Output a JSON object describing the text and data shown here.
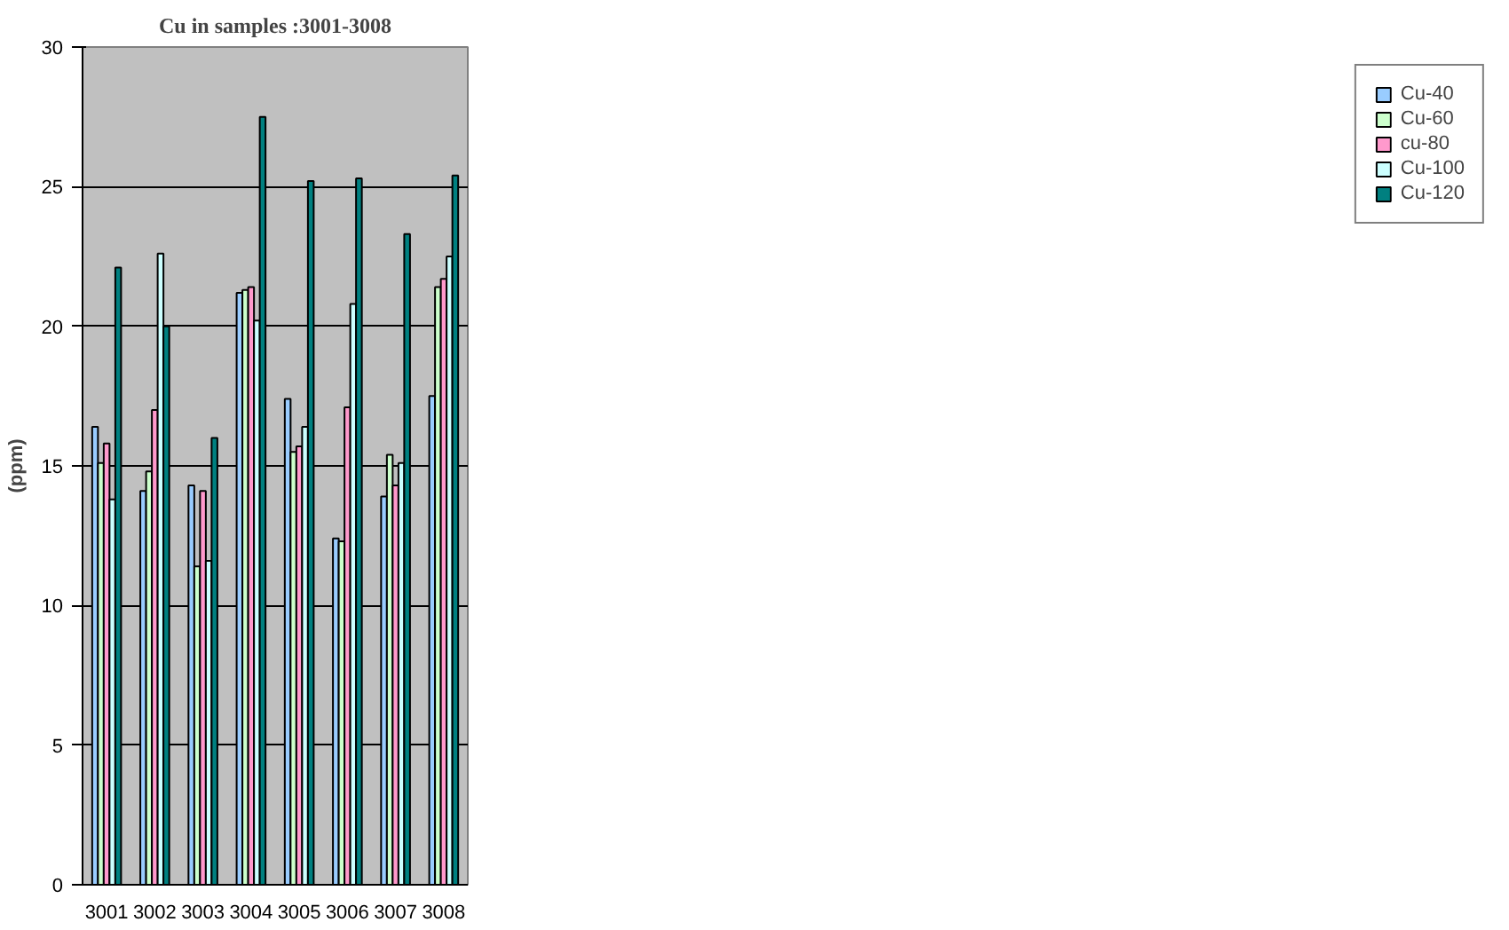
{
  "chart_data": {
    "type": "bar",
    "title": "Cu in samples :3001-3008",
    "ylabel": "(ppm)",
    "categories": [
      "3001",
      "3002",
      "3003",
      "3004",
      "3005",
      "3006",
      "3007",
      "3008"
    ],
    "series": [
      {
        "name": "Cu-40",
        "color": "#99ccff",
        "values": [
          16.4,
          14.1,
          14.3,
          21.2,
          17.4,
          12.4,
          13.9,
          17.5
        ]
      },
      {
        "name": "Cu-60",
        "color": "#ccffcc",
        "values": [
          15.1,
          14.8,
          11.4,
          21.3,
          15.5,
          12.3,
          15.4,
          21.4
        ]
      },
      {
        "name": "cu-80",
        "color": "#ff99cc",
        "values": [
          15.8,
          17.0,
          14.1,
          21.4,
          15.7,
          17.1,
          14.3,
          21.7
        ]
      },
      {
        "name": "Cu-100",
        "color": "#ccffff",
        "values": [
          13.8,
          22.6,
          11.6,
          20.2,
          16.4,
          20.8,
          15.1,
          22.5
        ]
      },
      {
        "name": "Cu-120",
        "color": "#008080",
        "values": [
          22.1,
          20.0,
          16.0,
          27.5,
          25.2,
          25.3,
          23.3,
          25.4
        ]
      }
    ],
    "ylim": [
      0,
      30
    ],
    "yticks": [
      0,
      5,
      10,
      15,
      20,
      25,
      30
    ],
    "grid": "y",
    "legend": "right"
  }
}
